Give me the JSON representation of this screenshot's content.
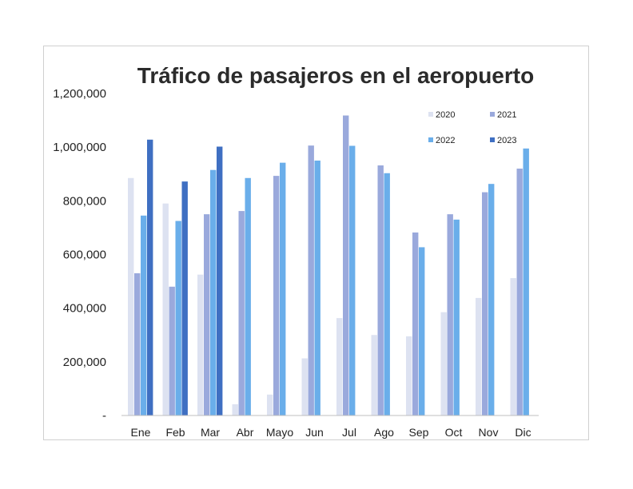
{
  "chart_data": {
    "type": "bar",
    "title": "Tráfico de pasajeros en el aeropuerto",
    "xlabel": "",
    "ylabel": "",
    "categories": [
      "Ene",
      "Feb",
      "Mar",
      "Abr",
      "Mayo",
      "Jun",
      "Jul",
      "Ago",
      "Sep",
      "Oct",
      "Nov",
      "Dic"
    ],
    "series": [
      {
        "name": "2020",
        "color": "#dde2f1",
        "values": [
          885000,
          790000,
          525000,
          42000,
          78000,
          213000,
          363000,
          300000,
          295000,
          385000,
          438000,
          512000
        ]
      },
      {
        "name": "2021",
        "color": "#9aa9dc",
        "values": [
          530000,
          480000,
          750000,
          762000,
          893000,
          1006000,
          1118000,
          932000,
          682000,
          750000,
          832000,
          920000
        ]
      },
      {
        "name": "2022",
        "color": "#6aaeea",
        "values": [
          745000,
          725000,
          915000,
          885000,
          942000,
          950000,
          1005000,
          903000,
          627000,
          730000,
          863000,
          995000
        ]
      },
      {
        "name": "2023",
        "color": "#3f6fc2",
        "values": [
          1028000,
          872000,
          1002000,
          null,
          null,
          null,
          null,
          null,
          null,
          null,
          null,
          null
        ]
      }
    ],
    "ylim": [
      0,
      1200000
    ],
    "yticks": [
      0,
      200000,
      400000,
      600000,
      800000,
      1000000,
      1200000
    ],
    "ytick_labels": [
      "-",
      "200,000",
      "400,000",
      "600,000",
      "800,000",
      "1,000,000",
      "1,200,000"
    ],
    "grid": false,
    "legend_position": "top-right"
  }
}
